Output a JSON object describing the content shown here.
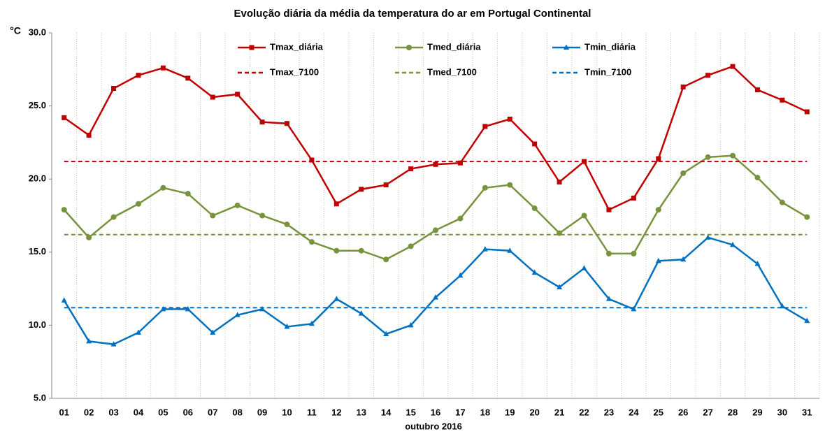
{
  "chart_data": {
    "type": "line",
    "title": "Evolução diária da média da temperatura do ar em Portugal Continental",
    "y_label": "°C",
    "x_label": "outubro 2016",
    "categories": [
      "01",
      "02",
      "03",
      "04",
      "05",
      "06",
      "07",
      "08",
      "09",
      "10",
      "11",
      "12",
      "13",
      "14",
      "15",
      "16",
      "17",
      "18",
      "19",
      "20",
      "21",
      "22",
      "23",
      "24",
      "25",
      "26",
      "27",
      "28",
      "29",
      "30",
      "31"
    ],
    "ylim": [
      5,
      30
    ],
    "yticks": [
      {
        "value": 5,
        "label": "5.0"
      },
      {
        "value": 10,
        "label": "10.0"
      },
      {
        "value": 15,
        "label": "15.0"
      },
      {
        "value": 20,
        "label": "20.0"
      },
      {
        "value": 25,
        "label": "25.0"
      },
      {
        "value": 30,
        "label": "30.0"
      }
    ],
    "grid": true,
    "series": [
      {
        "name": "Tmax_diária",
        "color": "#c00000",
        "marker": "square",
        "dashed": false,
        "values": [
          24.2,
          23.0,
          26.2,
          27.1,
          27.6,
          26.9,
          25.6,
          25.8,
          23.9,
          23.8,
          21.3,
          18.3,
          19.3,
          19.6,
          20.7,
          21.0,
          21.1,
          23.6,
          24.1,
          22.4,
          19.8,
          21.2,
          17.9,
          18.7,
          21.4,
          26.3,
          27.1,
          27.7,
          26.1,
          25.4,
          24.6
        ]
      },
      {
        "name": "Tmed_diária",
        "color": "#77933c",
        "marker": "circle",
        "dashed": false,
        "values": [
          17.9,
          16.0,
          17.4,
          18.3,
          19.4,
          19.0,
          17.5,
          18.2,
          17.5,
          16.9,
          15.7,
          15.1,
          15.1,
          14.5,
          15.4,
          16.5,
          17.3,
          19.4,
          19.6,
          18.0,
          16.3,
          17.5,
          14.9,
          14.9,
          17.9,
          20.4,
          21.5,
          21.6,
          20.1,
          18.4,
          17.4
        ]
      },
      {
        "name": "Tmin_diária",
        "color": "#0070c0",
        "marker": "triangle",
        "dashed": false,
        "values": [
          11.7,
          8.9,
          8.7,
          9.5,
          11.1,
          11.1,
          9.5,
          10.7,
          11.1,
          9.9,
          10.1,
          11.8,
          10.8,
          9.4,
          10.0,
          11.9,
          13.4,
          15.2,
          15.1,
          13.6,
          12.6,
          13.9,
          11.8,
          11.1,
          14.4,
          14.5,
          16.0,
          15.5,
          14.2,
          11.3,
          10.3
        ]
      },
      {
        "name": "Tmax_7100",
        "color": "#c00000",
        "marker": "none",
        "dashed": true,
        "values": [
          21.2,
          21.2,
          21.2,
          21.2,
          21.2,
          21.2,
          21.2,
          21.2,
          21.2,
          21.2,
          21.2,
          21.2,
          21.2,
          21.2,
          21.2,
          21.2,
          21.2,
          21.2,
          21.2,
          21.2,
          21.2,
          21.2,
          21.2,
          21.2,
          21.2,
          21.2,
          21.2,
          21.2,
          21.2,
          21.2,
          21.2
        ]
      },
      {
        "name": "Tmed_7100",
        "color": "#77933c",
        "marker": "none",
        "dashed": true,
        "values": [
          16.2,
          16.2,
          16.2,
          16.2,
          16.2,
          16.2,
          16.2,
          16.2,
          16.2,
          16.2,
          16.2,
          16.2,
          16.2,
          16.2,
          16.2,
          16.2,
          16.2,
          16.2,
          16.2,
          16.2,
          16.2,
          16.2,
          16.2,
          16.2,
          16.2,
          16.2,
          16.2,
          16.2,
          16.2,
          16.2,
          16.2
        ]
      },
      {
        "name": "Tmin_7100",
        "color": "#0070c0",
        "marker": "none",
        "dashed": true,
        "values": [
          11.2,
          11.2,
          11.2,
          11.2,
          11.2,
          11.2,
          11.2,
          11.2,
          11.2,
          11.2,
          11.2,
          11.2,
          11.2,
          11.2,
          11.2,
          11.2,
          11.2,
          11.2,
          11.2,
          11.2,
          11.2,
          11.2,
          11.2,
          11.2,
          11.2,
          11.2,
          11.2,
          11.2,
          11.2,
          11.2,
          11.2
        ]
      }
    ]
  }
}
